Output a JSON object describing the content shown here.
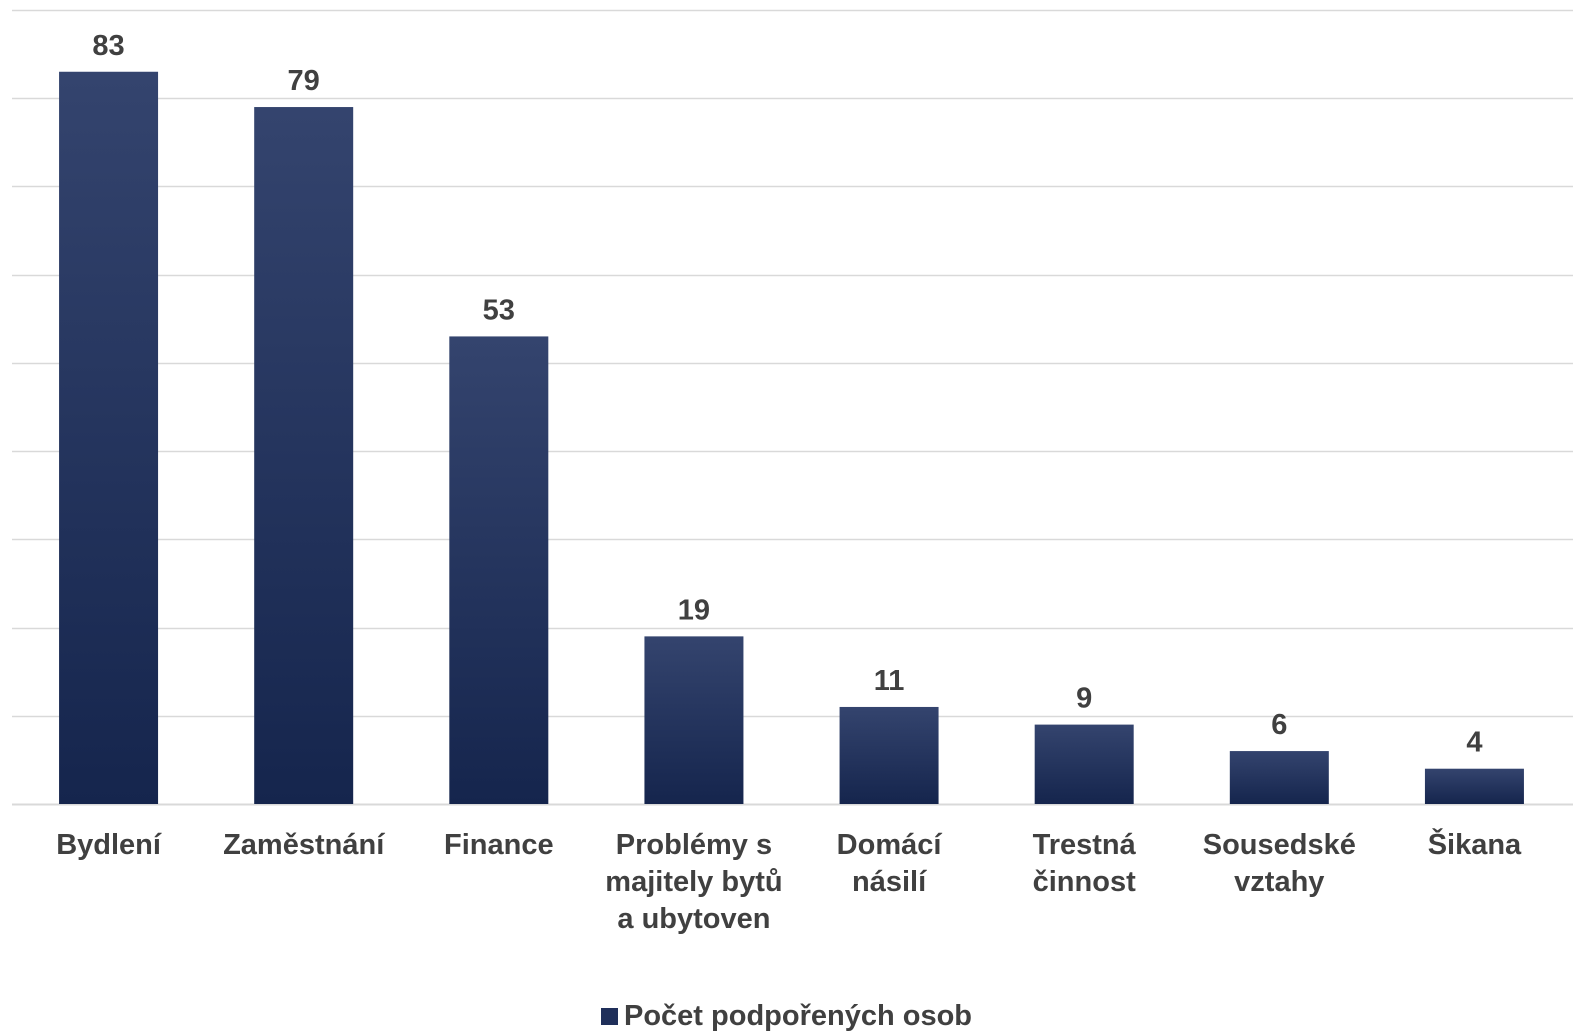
{
  "chart_data": {
    "type": "bar",
    "categories": [
      [
        "Bydlení"
      ],
      [
        "Zaměstnání"
      ],
      [
        "Finance"
      ],
      [
        "Problémy s",
        "majitely bytů",
        "a ubytoven"
      ],
      [
        "Domácí",
        "násilí"
      ],
      [
        "Trestná",
        "činnost"
      ],
      [
        "Sousedské",
        "vztahy"
      ],
      [
        "Šikana"
      ]
    ],
    "series": [
      {
        "name": "Počet podpořených osob",
        "values": [
          83,
          79,
          53,
          19,
          11,
          9,
          6,
          4
        ],
        "color": "#1f2f5a"
      }
    ],
    "data_labels": [
      "83",
      "79",
      "53",
      "19",
      "11",
      "9",
      "6",
      "4"
    ],
    "ylim": [
      0,
      90
    ],
    "gridline_step": 10,
    "grid": true,
    "legend_position": "bottom",
    "colors": {
      "bar_top": "#34446e",
      "bar_bottom": "#15254d",
      "grid": "#d9d9d9",
      "text": "#404040"
    }
  }
}
